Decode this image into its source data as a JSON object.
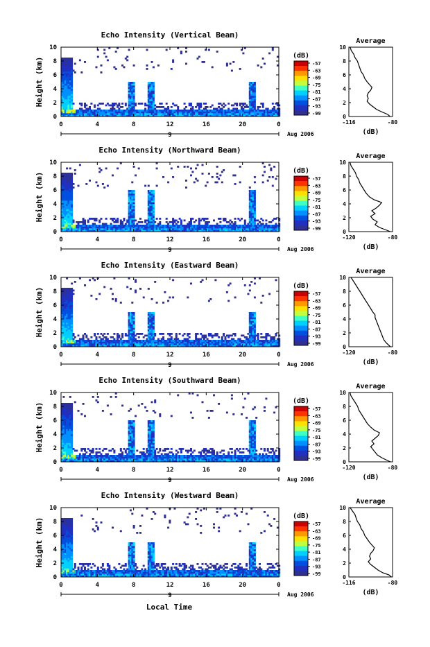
{
  "figure": {
    "xlabel": "Local Time",
    "date_label": "Aug 2006",
    "day_label": "9",
    "ylabel": "Height (km)",
    "cb_title": "(dB)",
    "avg_title": "Average",
    "avg_xlabel": "(dB)"
  },
  "colorbar": {
    "ticks": [
      "-57",
      "-63",
      "-69",
      "-75",
      "-81",
      "-87",
      "-93",
      "-99"
    ],
    "colors": [
      "#cc0000",
      "#ff3300",
      "#ff9900",
      "#ffe000",
      "#c0ff40",
      "#40ffc0",
      "#00d0ff",
      "#0090ff",
      "#0050e0",
      "#2030c0",
      "#303090"
    ]
  },
  "chart_data": [
    {
      "type": "heatmap",
      "title": "Echo Intensity (Vertical Beam)",
      "x_ticks": [
        "0",
        "4",
        "8",
        "12",
        "16",
        "20",
        "0"
      ],
      "y_ticks": [
        "0",
        "2",
        "4",
        "6",
        "8",
        "10"
      ],
      "xlim": [
        0,
        24
      ],
      "ylim": [
        0,
        10
      ],
      "profile": {
        "xlim": [
          -116,
          -80
        ],
        "x_ticks": [
          "-116",
          "-80"
        ],
        "heights": [
          0,
          0.3,
          0.6,
          1,
          1.4,
          1.8,
          2.2,
          2.6,
          3,
          3.4,
          3.8,
          4.2,
          4.6,
          5,
          5.5,
          6,
          6.5,
          7,
          7.5,
          8,
          8.5,
          9,
          9.5,
          10
        ],
        "values": [
          -82,
          -84,
          -88,
          -93,
          -96,
          -99,
          -101,
          -100,
          -101,
          -100,
          -98,
          -97,
          -99,
          -101,
          -103,
          -104,
          -106,
          -107,
          -108,
          -109,
          -111,
          -112,
          -114,
          -115
        ]
      }
    },
    {
      "type": "heatmap",
      "title": "Echo Intensity (Northward Beam)",
      "x_ticks": [
        "0",
        "4",
        "8",
        "12",
        "16",
        "20",
        "0"
      ],
      "y_ticks": [
        "0",
        "2",
        "4",
        "6",
        "8",
        "10"
      ],
      "xlim": [
        0,
        24
      ],
      "ylim": [
        0,
        10
      ],
      "profile": {
        "xlim": [
          -120,
          -80
        ],
        "x_ticks": [
          "-120",
          "-80"
        ],
        "heights": [
          0,
          0.3,
          0.6,
          1,
          1.4,
          1.8,
          2.2,
          2.6,
          3,
          3.4,
          3.8,
          4.2,
          4.6,
          5,
          5.5,
          6,
          6.5,
          7,
          7.5,
          8,
          8.5,
          9,
          9.5,
          10
        ],
        "values": [
          -82,
          -87,
          -92,
          -96,
          -94,
          -98,
          -100,
          -96,
          -99,
          -95,
          -92,
          -90,
          -97,
          -101,
          -104,
          -106,
          -108,
          -110,
          -111,
          -113,
          -114,
          -116,
          -118,
          -119
        ]
      }
    },
    {
      "type": "heatmap",
      "title": "Echo Intensity (Eastward Beam)",
      "x_ticks": [
        "0",
        "4",
        "8",
        "12",
        "16",
        "20",
        "0"
      ],
      "y_ticks": [
        "0",
        "2",
        "4",
        "6",
        "8",
        "10"
      ],
      "xlim": [
        0,
        24
      ],
      "ylim": [
        0,
        10
      ],
      "profile": {
        "xlim": [
          -120,
          -80
        ],
        "x_ticks": [
          "-120",
          "-80"
        ],
        "heights": [
          0,
          0.3,
          0.6,
          1,
          1.4,
          1.8,
          2.2,
          2.6,
          3,
          3.4,
          3.8,
          4.2,
          4.6,
          5,
          5.5,
          6,
          6.5,
          7,
          7.5,
          8,
          8.5,
          9,
          9.5,
          10
        ],
        "values": [
          -82,
          -84,
          -86,
          -88,
          -89,
          -90,
          -91,
          -92,
          -93,
          -94,
          -95,
          -96,
          -96,
          -98,
          -100,
          -102,
          -104,
          -106,
          -108,
          -110,
          -112,
          -114,
          -116,
          -118
        ]
      }
    },
    {
      "type": "heatmap",
      "title": "Echo Intensity (Southward Beam)",
      "x_ticks": [
        "0",
        "4",
        "8",
        "12",
        "16",
        "20",
        "0"
      ],
      "y_ticks": [
        "0",
        "2",
        "4",
        "6",
        "8",
        "10"
      ],
      "xlim": [
        0,
        24
      ],
      "ylim": [
        0,
        10
      ],
      "profile": {
        "xlim": [
          -120,
          -80
        ],
        "x_ticks": [
          "-120",
          "-80"
        ],
        "heights": [
          0,
          0.3,
          0.6,
          1,
          1.4,
          1.8,
          2.2,
          2.6,
          3,
          3.4,
          3.8,
          4.2,
          4.6,
          5,
          5.5,
          6,
          6.5,
          7,
          7.5,
          8,
          8.5,
          9,
          9.5,
          10
        ],
        "values": [
          -82,
          -86,
          -90,
          -94,
          -96,
          -98,
          -100,
          -97,
          -99,
          -96,
          -93,
          -92,
          -97,
          -100,
          -103,
          -105,
          -107,
          -109,
          -111,
          -112,
          -114,
          -116,
          -118,
          -119
        ]
      }
    },
    {
      "type": "heatmap",
      "title": "Echo Intensity (Westward Beam)",
      "x_ticks": [
        "0",
        "4",
        "8",
        "12",
        "16",
        "20",
        "0"
      ],
      "y_ticks": [
        "0",
        "2",
        "4",
        "6",
        "8",
        "10"
      ],
      "xlim": [
        0,
        24
      ],
      "ylim": [
        0,
        10
      ],
      "profile": {
        "xlim": [
          -116,
          -80
        ],
        "x_ticks": [
          "-116",
          "-80"
        ],
        "heights": [
          0,
          0.3,
          0.6,
          1,
          1.4,
          1.8,
          2.2,
          2.6,
          3,
          3.4,
          3.8,
          4.2,
          4.6,
          5,
          5.5,
          6,
          6.5,
          7,
          7.5,
          8,
          8.5,
          9,
          9.5,
          10
        ],
        "values": [
          -81,
          -83,
          -88,
          -92,
          -95,
          -98,
          -100,
          -98,
          -99,
          -98,
          -96,
          -95,
          -97,
          -99,
          -101,
          -103,
          -104,
          -106,
          -107,
          -109,
          -110,
          -111,
          -113,
          -115
        ]
      }
    }
  ]
}
